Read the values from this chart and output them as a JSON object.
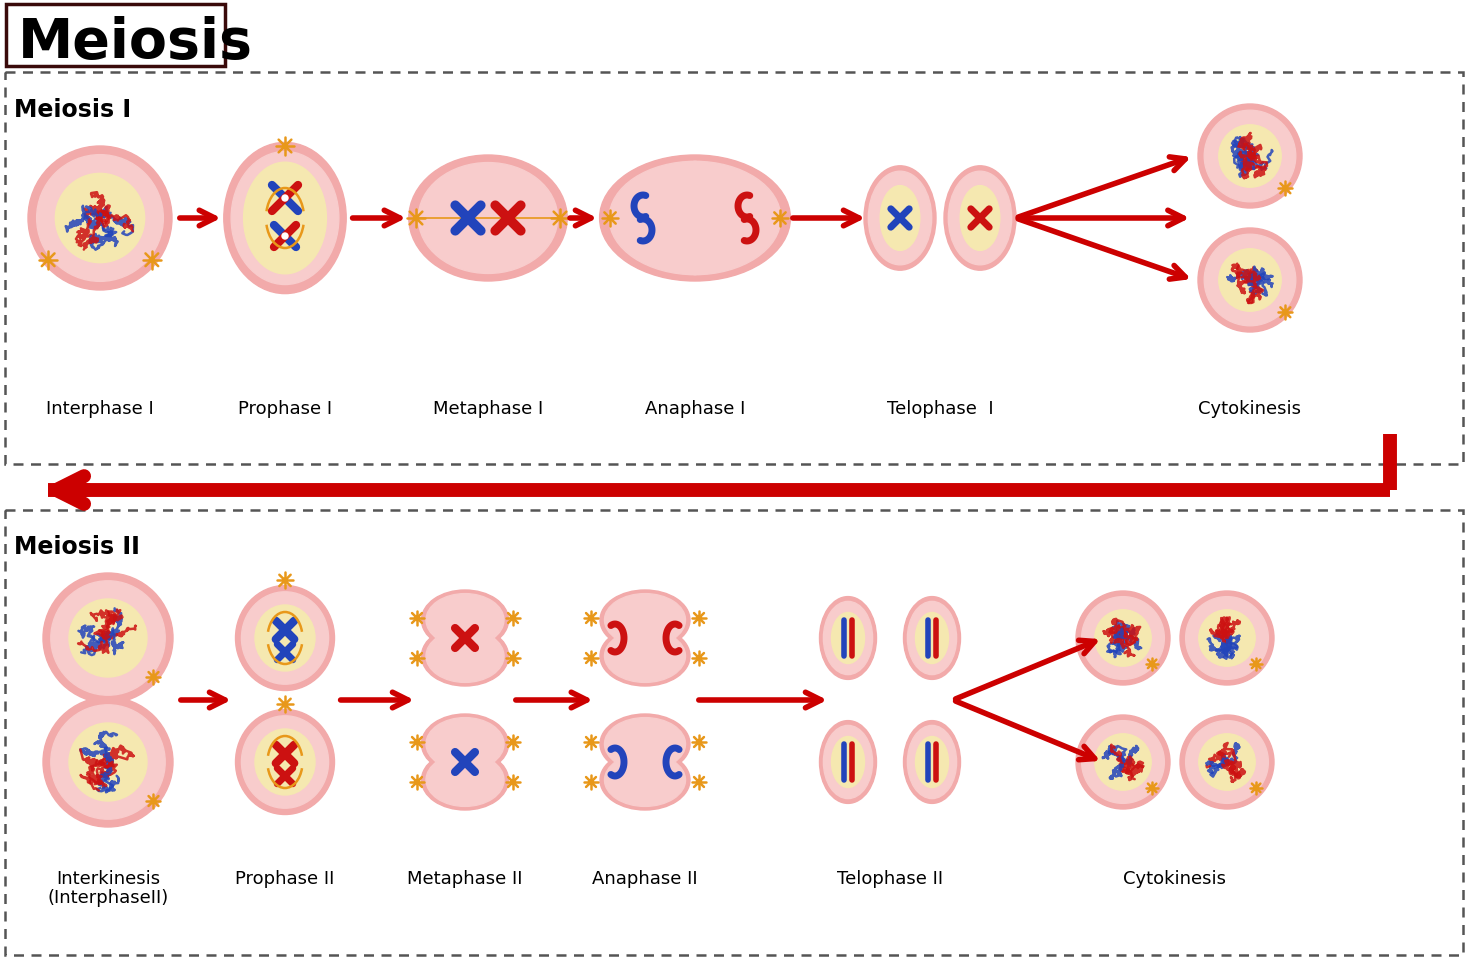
{
  "title": "Meiosis",
  "bg_color": "#ffffff",
  "cell_pink_outer": "#f2aaaa",
  "cell_pink_inner": "#f8cccc",
  "cell_pink_light": "#fde0e0",
  "nucleus_cream": "#f5e8b0",
  "arrow_color": "#cc0000",
  "text_color": "#000000",
  "chr_blue": "#2244bb",
  "chr_red": "#cc1111",
  "orange": "#e8981a",
  "meiosis1_label": "Meiosis I",
  "meiosis2_label": "Meiosis II",
  "stages1": [
    "Interphase I",
    "Prophase I",
    "Metaphase I",
    "Anaphase I",
    "Telophase  I",
    "Cytokinesis"
  ],
  "stages2_line1": [
    "Interkinesis",
    "Prophase II",
    "Metaphase II",
    "Anaphase II",
    "Telophase II",
    "Cytokinesis"
  ],
  "stages2_line2": [
    "(InterphaseII)",
    "",
    "",
    "",
    "",
    ""
  ]
}
